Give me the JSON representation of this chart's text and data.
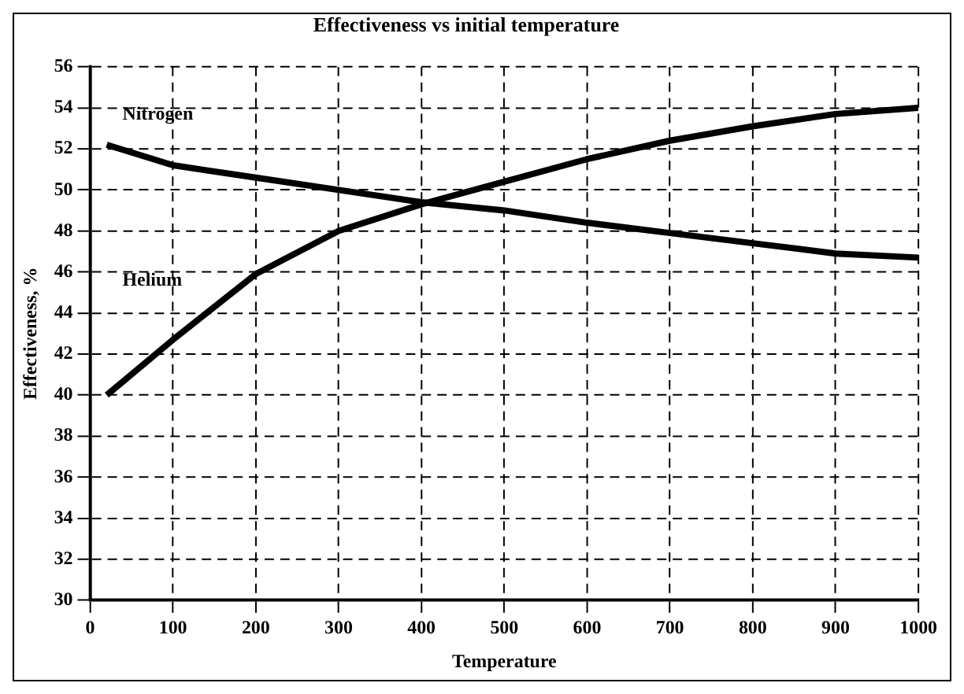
{
  "chart_data": {
    "type": "line",
    "title": "Effectiveness vs initial temperature",
    "xlabel": "Temperature",
    "ylabel": "Effectiveness, %",
    "x": [
      20,
      100,
      200,
      300,
      400,
      500,
      600,
      700,
      800,
      900,
      1000
    ],
    "series": [
      {
        "name": "Nitrogen",
        "color": "#000000",
        "values": [
          52.2,
          51.2,
          50.6,
          50,
          49.4,
          49,
          48.4,
          47.9,
          47.4,
          46.9,
          46.7
        ]
      },
      {
        "name": "Helium",
        "color": "#000000",
        "values": [
          40,
          42.7,
          45.9,
          48,
          49.3,
          50.4,
          51.5,
          52.4,
          53.1,
          53.7,
          54
        ]
      }
    ],
    "xlim": [
      0,
      1000
    ],
    "xticks": [
      0,
      100,
      200,
      300,
      400,
      500,
      600,
      700,
      800,
      900,
      1000
    ],
    "ylim": [
      30,
      56
    ],
    "yticks": [
      30,
      32,
      34,
      36,
      38,
      40,
      42,
      44,
      46,
      48,
      50,
      52,
      54,
      56
    ],
    "grid": true,
    "legend": false,
    "marker": "none",
    "line_style": "solid"
  }
}
